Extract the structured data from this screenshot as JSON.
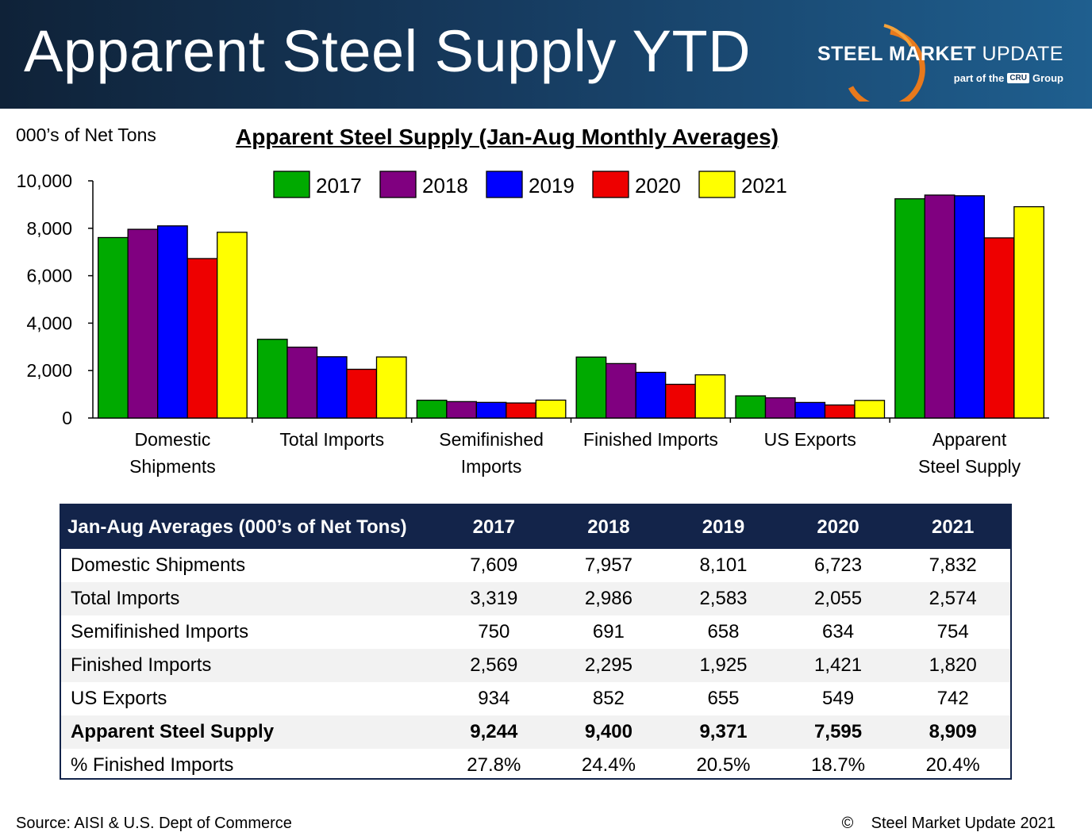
{
  "header": {
    "title": "Apparent Steel Supply YTD",
    "logo_name_bold": "STEEL MARKET",
    "logo_name_thin": "UPDATE",
    "logo_sub_before": "part of the",
    "logo_sub_box": "CRU",
    "logo_sub_after": "Group"
  },
  "chart_header": {
    "unit_label": "000’s of Net Tons",
    "title": "Apparent Steel Supply (Jan-Aug Monthly Averages)"
  },
  "chart_data": {
    "type": "bar",
    "title": "Apparent Steel Supply (Jan-Aug Monthly Averages)",
    "ylabel": "000’s of Net Tons",
    "xlabel": "",
    "ylim": [
      0,
      10000
    ],
    "yticks": [
      0,
      2000,
      4000,
      6000,
      8000,
      10000
    ],
    "ytick_labels": [
      "0",
      "2,000",
      "4,000",
      "6,000",
      "8,000",
      "10,000"
    ],
    "grid": false,
    "legend_position": "top-center",
    "categories": [
      [
        "Domestic",
        "Shipments"
      ],
      [
        "Total Imports"
      ],
      [
        "Semifinished",
        "Imports"
      ],
      [
        "Finished Imports"
      ],
      [
        "US Exports"
      ],
      [
        "Apparent",
        "Steel Supply"
      ]
    ],
    "series": [
      {
        "name": "2017",
        "color": "#00aa00",
        "values": [
          7609,
          3319,
          750,
          2569,
          934,
          9244
        ]
      },
      {
        "name": "2018",
        "color": "#800080",
        "values": [
          7957,
          2986,
          691,
          2295,
          852,
          9400
        ]
      },
      {
        "name": "2019",
        "color": "#0000ff",
        "values": [
          8101,
          2583,
          658,
          1925,
          655,
          9371
        ]
      },
      {
        "name": "2020",
        "color": "#ee0000",
        "values": [
          6723,
          2055,
          634,
          1421,
          549,
          7595
        ]
      },
      {
        "name": "2021",
        "color": "#ffff00",
        "values": [
          7832,
          2574,
          754,
          1820,
          742,
          8909
        ]
      }
    ]
  },
  "table": {
    "header": [
      "Jan-Aug Averages (000’s of Net Tons)",
      "2017",
      "2018",
      "2019",
      "2020",
      "2021"
    ],
    "rows": [
      {
        "label": "Domestic Shipments",
        "values": [
          "7,609",
          "7,957",
          "8,101",
          "6,723",
          "7,832"
        ]
      },
      {
        "label": "Total Imports",
        "values": [
          "3,319",
          "2,986",
          "2,583",
          "2,055",
          "2,574"
        ]
      },
      {
        "label": "Semifinished Imports",
        "values": [
          "750",
          "691",
          "658",
          "634",
          "754"
        ]
      },
      {
        "label": "Finished Imports",
        "values": [
          "2,569",
          "2,295",
          "1,925",
          "1,421",
          "1,820"
        ]
      },
      {
        "label": "US Exports",
        "values": [
          "934",
          "852",
          "655",
          "549",
          "742"
        ]
      },
      {
        "label": "Apparent Steel Supply",
        "values": [
          "9,244",
          "9,400",
          "9,371",
          "7,595",
          "8,909"
        ]
      },
      {
        "label": "% Finished Imports",
        "values": [
          "27.8%",
          "24.4%",
          "20.5%",
          "18.7%",
          "20.4%"
        ]
      }
    ]
  },
  "footer": {
    "source": "Source:  AISI & U.S. Dept of Commerce",
    "copyright": "©    Steel Market Update 2021"
  }
}
